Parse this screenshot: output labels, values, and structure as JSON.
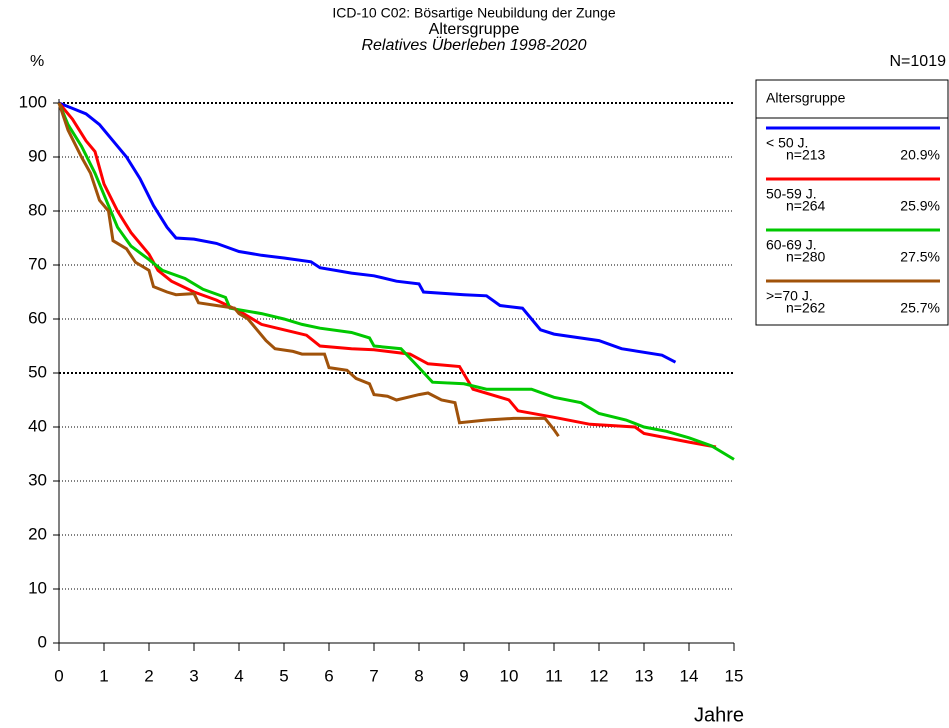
{
  "chart_data": {
    "type": "line",
    "title": "ICD-10 C02: Bösartige Neubildung der Zunge",
    "subtitle": "Altersgruppe",
    "subtitle2": "Relatives Überleben 1998-2020",
    "y_label": "%",
    "x_label": "Jahre",
    "total": "N=1019",
    "legend_title": "Altersgruppe",
    "xlim": [
      0,
      15
    ],
    "xticks": [
      0,
      1,
      2,
      3,
      4,
      5,
      6,
      7,
      8,
      9,
      10,
      11,
      12,
      13,
      14,
      15
    ],
    "ylim": [
      0,
      100
    ],
    "yticks": [
      0,
      10,
      20,
      30,
      40,
      50,
      60,
      70,
      80,
      90,
      100
    ],
    "grid": true,
    "bold_grid": [
      50,
      100
    ],
    "series": [
      {
        "name": "< 50 J.",
        "n": "n=213",
        "share": "20.9%",
        "color": "#0000ff",
        "x": [
          0,
          0.3,
          0.6,
          0.9,
          1.2,
          1.5,
          1.8,
          2.1,
          2.4,
          2.6,
          3,
          3.5,
          4,
          4.5,
          5,
          5.6,
          5.8,
          6.5,
          7,
          7.5,
          8,
          8.1,
          9,
          9.5,
          9.8,
          10.3,
          10.5,
          10.7,
          11,
          12,
          12.5,
          13.4,
          13.7
        ],
        "values": [
          100,
          99,
          98,
          96,
          93,
          90,
          86,
          81,
          77,
          75,
          74.8,
          74,
          72.5,
          71.8,
          71.3,
          70.6,
          69.5,
          68.5,
          68,
          67,
          66.5,
          65,
          64.5,
          64.3,
          62.5,
          62,
          60,
          58,
          57.2,
          56,
          54.5,
          53.3,
          52
        ]
      },
      {
        "name": "50-59 J.",
        "n": "n=264",
        "share": "25.9%",
        "color": "#ff0000",
        "x": [
          0,
          0.3,
          0.6,
          0.8,
          1,
          1.3,
          1.6,
          2,
          2.2,
          2.5,
          3,
          3.5,
          4,
          4.5,
          5,
          5.5,
          5.8,
          6.5,
          7,
          7.8,
          8.2,
          8.9,
          9.2,
          10,
          10.2,
          11,
          11.8,
          12.8,
          13,
          14,
          14.6
        ],
        "values": [
          100,
          97,
          93,
          91,
          85,
          80,
          76,
          72,
          69,
          67,
          65,
          63.5,
          61.5,
          59,
          58,
          57,
          55,
          54.5,
          54.3,
          53.5,
          51.7,
          51.2,
          47,
          45,
          43,
          41.8,
          40.5,
          40,
          38.8,
          37.2,
          36.3
        ]
      },
      {
        "name": "60-69 J.",
        "n": "n=280",
        "share": "27.5%",
        "color": "#00c800",
        "x": [
          0,
          0.2,
          0.5,
          0.8,
          1,
          1.3,
          1.6,
          2,
          2.3,
          2.8,
          3.2,
          3.7,
          3.8,
          4.5,
          5,
          5.4,
          5.8,
          6.5,
          6.9,
          7,
          7.6,
          8,
          8.3,
          9,
          9.5,
          10.5,
          11,
          11.6,
          12,
          12.6,
          13,
          13.5,
          14,
          14.5,
          15
        ],
        "values": [
          100,
          96,
          92,
          87,
          83,
          77,
          73.5,
          71,
          69,
          67.5,
          65.5,
          64,
          62,
          61,
          60,
          59,
          58.3,
          57.5,
          56.5,
          55,
          54.5,
          51,
          48.3,
          48,
          47,
          47,
          45.5,
          44.5,
          42.5,
          41.3,
          40,
          39.2,
          38,
          36.5,
          34
        ]
      },
      {
        "name": ">=70 J.",
        "n": "n=262",
        "share": "25.7%",
        "color": "#a0520a",
        "x": [
          0,
          0.2,
          0.5,
          0.7,
          0.9,
          1.1,
          1.2,
          1.5,
          1.7,
          2,
          2.1,
          2.4,
          2.6,
          3,
          3.1,
          3.5,
          3.9,
          4,
          4.2,
          4.4,
          4.6,
          4.8,
          5.2,
          5.4,
          5.9,
          6,
          6.4,
          6.6,
          6.9,
          7,
          7.3,
          7.5,
          8,
          8.2,
          8.5,
          8.8,
          8.9,
          9.5,
          10.1,
          10.8,
          11,
          11.1
        ],
        "values": [
          100,
          95,
          90,
          87,
          82,
          80,
          74.5,
          73,
          70.5,
          69,
          66,
          65,
          64.5,
          64.7,
          63,
          62.5,
          62,
          61,
          60,
          58,
          56,
          54.5,
          54,
          53.5,
          53.5,
          51,
          50.5,
          49,
          48,
          46,
          45.7,
          45,
          46,
          46.3,
          45,
          44.5,
          40.8,
          41.3,
          41.6,
          41.6,
          39.5,
          38.3
        ]
      }
    ]
  }
}
